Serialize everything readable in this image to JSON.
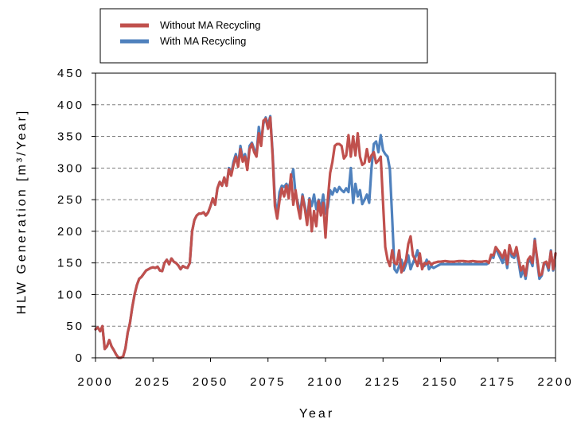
{
  "chart_data": {
    "type": "line",
    "title": "",
    "xlabel": "Year",
    "ylabel": "HLW Generation [m³/Year]",
    "xlim": [
      2000,
      2200
    ],
    "ylim": [
      0,
      450
    ],
    "xticks": [
      2000,
      2025,
      2050,
      2075,
      2100,
      2125,
      2150,
      2175,
      2200
    ],
    "yticks": [
      0,
      50,
      100,
      150,
      200,
      250,
      300,
      350,
      400,
      450
    ],
    "grid": "horizontal dashed",
    "legend_position": "top, above plot",
    "series": [
      {
        "name": "Without MA Recycling",
        "color": "#c0504d",
        "x": [
          2000,
          2001,
          2002,
          2003,
          2004,
          2005,
          2006,
          2007,
          2008,
          2009,
          2010,
          2011,
          2012,
          2013,
          2014,
          2015,
          2016,
          2017,
          2018,
          2019,
          2020,
          2021,
          2022,
          2023,
          2024,
          2025,
          2026,
          2027,
          2028,
          2029,
          2030,
          2031,
          2032,
          2033,
          2034,
          2035,
          2036,
          2037,
          2038,
          2039,
          2040,
          2041,
          2042,
          2043,
          2044,
          2045,
          2046,
          2047,
          2048,
          2049,
          2050,
          2051,
          2052,
          2053,
          2054,
          2055,
          2056,
          2057,
          2058,
          2059,
          2060,
          2061,
          2062,
          2063,
          2064,
          2065,
          2066,
          2067,
          2068,
          2069,
          2070,
          2071,
          2072,
          2073,
          2074,
          2075,
          2076,
          2077,
          2078,
          2079,
          2080,
          2081,
          2082,
          2083,
          2084,
          2085,
          2086,
          2087,
          2088,
          2089,
          2090,
          2091,
          2092,
          2093,
          2094,
          2095,
          2096,
          2097,
          2098,
          2099,
          2100,
          2101,
          2102,
          2103,
          2104,
          2105,
          2106,
          2107,
          2108,
          2109,
          2110,
          2111,
          2112,
          2113,
          2114,
          2115,
          2116,
          2117,
          2118,
          2119,
          2120,
          2121,
          2122,
          2123,
          2124,
          2125,
          2126,
          2127,
          2128,
          2129,
          2130,
          2131,
          2132,
          2133,
          2134,
          2135,
          2136,
          2137,
          2138,
          2139,
          2140,
          2141,
          2142,
          2143,
          2144,
          2145,
          2146,
          2147,
          2148,
          2149,
          2150,
          2152,
          2154,
          2156,
          2158,
          2160,
          2162,
          2164,
          2166,
          2168,
          2170,
          2171,
          2172,
          2173,
          2174,
          2175,
          2176,
          2177,
          2178,
          2179,
          2180,
          2181,
          2182,
          2183,
          2184,
          2185,
          2186,
          2187,
          2188,
          2189,
          2190,
          2191,
          2192,
          2193,
          2194,
          2195,
          2196,
          2197,
          2198,
          2199,
          2200
        ],
        "y": [
          45,
          48,
          42,
          50,
          14,
          18,
          28,
          18,
          12,
          5,
          0,
          0,
          2,
          15,
          40,
          55,
          80,
          100,
          115,
          125,
          128,
          133,
          138,
          140,
          142,
          143,
          142,
          144,
          138,
          137,
          150,
          155,
          148,
          157,
          152,
          150,
          146,
          140,
          145,
          143,
          142,
          150,
          200,
          218,
          225,
          228,
          228,
          230,
          225,
          230,
          240,
          252,
          242,
          268,
          278,
          272,
          285,
          272,
          298,
          288,
          305,
          318,
          302,
          330,
          310,
          318,
          297,
          330,
          338,
          325,
          318,
          355,
          335,
          375,
          378,
          362,
          380,
          320,
          240,
          220,
          248,
          268,
          255,
          272,
          252,
          290,
          242,
          265,
          238,
          220,
          255,
          236,
          210,
          250,
          200,
          232,
          208,
          248,
          225,
          245,
          190,
          250,
          292,
          310,
          335,
          338,
          338,
          335,
          315,
          320,
          352,
          318,
          350,
          320,
          355,
          318,
          305,
          308,
          330,
          310,
          320,
          325,
          308,
          312,
          318,
          245,
          175,
          155,
          145,
          170,
          150,
          148,
          170,
          135,
          145,
          155,
          180,
          192,
          162,
          155,
          145,
          165,
          140,
          150,
          148,
          152,
          147,
          150,
          151,
          152,
          152,
          153,
          152,
          152,
          153,
          153,
          152,
          153,
          152,
          152,
          153,
          150,
          163,
          162,
          175,
          170,
          165,
          158,
          170,
          148,
          178,
          165,
          162,
          175,
          155,
          138,
          145,
          130,
          155,
          160,
          150,
          185,
          158,
          130,
          132,
          150,
          152,
          142,
          168,
          140,
          165
        ]
      },
      {
        "name": "With MA Recycling",
        "color": "#4f81bd",
        "x": [
          2000,
          2001,
          2002,
          2003,
          2004,
          2005,
          2006,
          2007,
          2008,
          2009,
          2010,
          2011,
          2012,
          2013,
          2014,
          2015,
          2016,
          2017,
          2018,
          2019,
          2020,
          2021,
          2022,
          2023,
          2024,
          2025,
          2026,
          2027,
          2028,
          2029,
          2030,
          2031,
          2032,
          2033,
          2034,
          2035,
          2036,
          2037,
          2038,
          2039,
          2040,
          2041,
          2042,
          2043,
          2044,
          2045,
          2046,
          2047,
          2048,
          2049,
          2050,
          2051,
          2052,
          2053,
          2054,
          2055,
          2056,
          2057,
          2058,
          2059,
          2060,
          2061,
          2062,
          2063,
          2064,
          2065,
          2066,
          2067,
          2068,
          2069,
          2070,
          2071,
          2072,
          2073,
          2074,
          2075,
          2076,
          2077,
          2078,
          2079,
          2080,
          2081,
          2082,
          2083,
          2084,
          2085,
          2086,
          2087,
          2088,
          2089,
          2090,
          2091,
          2092,
          2093,
          2094,
          2095,
          2096,
          2097,
          2098,
          2099,
          2100,
          2101,
          2102,
          2103,
          2104,
          2105,
          2106,
          2107,
          2108,
          2109,
          2110,
          2111,
          2112,
          2113,
          2114,
          2115,
          2116,
          2117,
          2118,
          2119,
          2120,
          2121,
          2122,
          2123,
          2124,
          2125,
          2126,
          2127,
          2128,
          2129,
          2130,
          2131,
          2132,
          2133,
          2134,
          2135,
          2136,
          2137,
          2138,
          2139,
          2140,
          2141,
          2142,
          2143,
          2144,
          2145,
          2146,
          2147,
          2148,
          2149,
          2150,
          2152,
          2154,
          2156,
          2158,
          2160,
          2162,
          2164,
          2166,
          2168,
          2170,
          2171,
          2172,
          2173,
          2174,
          2175,
          2176,
          2177,
          2178,
          2179,
          2180,
          2181,
          2182,
          2183,
          2184,
          2185,
          2186,
          2187,
          2188,
          2189,
          2190,
          2191,
          2192,
          2193,
          2194,
          2195,
          2196,
          2197,
          2198,
          2199,
          2200
        ],
        "y": [
          45,
          48,
          42,
          50,
          14,
          18,
          28,
          18,
          12,
          5,
          0,
          0,
          2,
          15,
          40,
          55,
          80,
          100,
          115,
          125,
          128,
          133,
          138,
          140,
          142,
          143,
          142,
          144,
          138,
          137,
          150,
          155,
          148,
          157,
          152,
          150,
          146,
          140,
          145,
          143,
          142,
          150,
          200,
          218,
          225,
          228,
          228,
          230,
          225,
          230,
          240,
          252,
          242,
          268,
          278,
          272,
          285,
          272,
          300,
          290,
          310,
          322,
          305,
          335,
          315,
          322,
          300,
          335,
          340,
          330,
          322,
          365,
          340,
          370,
          380,
          368,
          382,
          325,
          250,
          225,
          262,
          272,
          270,
          275,
          268,
          282,
          298,
          258,
          245,
          228,
          258,
          240,
          218,
          252,
          240,
          258,
          235,
          250,
          235,
          258,
          228,
          238,
          265,
          258,
          268,
          262,
          270,
          265,
          262,
          268,
          262,
          300,
          245,
          275,
          255,
          265,
          243,
          250,
          258,
          245,
          300,
          338,
          342,
          325,
          352,
          328,
          322,
          318,
          298,
          220,
          140,
          135,
          145,
          155,
          138,
          148,
          162,
          140,
          150,
          158,
          170,
          150,
          148,
          145,
          155,
          140,
          145,
          142,
          144,
          146,
          148,
          148,
          148,
          148,
          148,
          148,
          148,
          148,
          148,
          148,
          148,
          150,
          160,
          158,
          175,
          165,
          158,
          150,
          165,
          142,
          175,
          160,
          158,
          168,
          150,
          128,
          140,
          125,
          150,
          155,
          145,
          188,
          152,
          125,
          130,
          148,
          150,
          138,
          170,
          138,
          165
        ]
      }
    ]
  }
}
